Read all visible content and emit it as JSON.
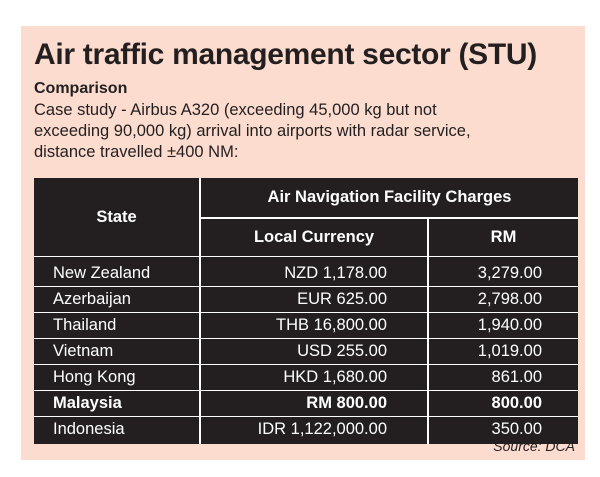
{
  "title": "Air traffic management sector (STU)",
  "subtitle": "Comparison",
  "description_lines": [
    "Case study - Airbus A320 (exceeding 45,000 kg but not",
    "exceeding 90,000 kg) arrival into airports with radar service,",
    "distance travelled ±400 NM:"
  ],
  "table": {
    "state_header": "State",
    "group_header": "Air Navigation Facility Charges",
    "local_header": "Local Currency",
    "rm_header": "RM",
    "rows": [
      {
        "state": "New Zealand",
        "local": "NZD 1,178.00",
        "rm": "3,279.00",
        "highlight": false
      },
      {
        "state": "Azerbaijan",
        "local": "EUR 625.00",
        "rm": "2,798.00",
        "highlight": false
      },
      {
        "state": "Thailand",
        "local": "THB 16,800.00",
        "rm": "1,940.00",
        "highlight": false
      },
      {
        "state": "Vietnam",
        "local": "USD 255.00",
        "rm": "1,019.00",
        "highlight": false
      },
      {
        "state": "Hong Kong",
        "local": "HKD 1,680.00",
        "rm": "861.00",
        "highlight": false
      },
      {
        "state": "Malaysia",
        "local": "RM 800.00",
        "rm": "800.00",
        "highlight": true
      },
      {
        "state": "Indonesia",
        "local": "IDR 1,122,000.00",
        "rm": "350.00",
        "highlight": false
      }
    ]
  },
  "source": "Source: DCA",
  "colors": {
    "background": "#fbdcce",
    "table": "#231f20",
    "text": "#231f20"
  }
}
